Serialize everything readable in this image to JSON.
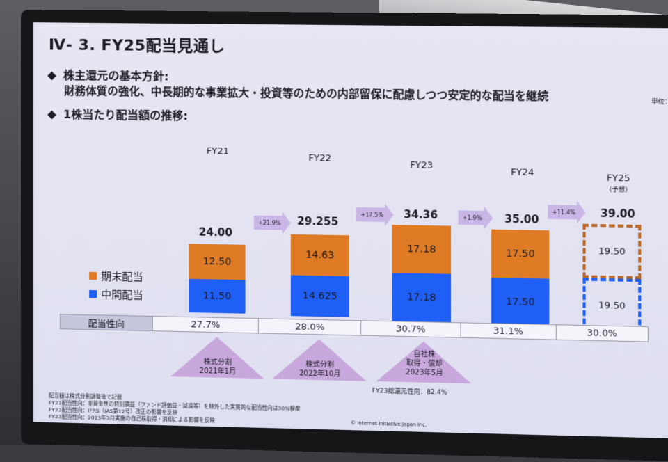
{
  "slide": {
    "title": "Ⅳ- 3. FY25配当見通し",
    "bullet1": "株主還元の基本方針:",
    "policy": "財務体質の強化、中長期的な事業拡大・投資等のための内部留保に配慮しつつ安定的な配当を継続",
    "bullet2": "1株当たり配当額の推移:",
    "unit": "単位：円"
  },
  "legend": {
    "year_end": "期末配当",
    "interim": "中間配当"
  },
  "years": [
    {
      "fy": "FY21",
      "total": "24.00",
      "year_end": "12.50",
      "interim": "11.50",
      "payout": "27.7%"
    },
    {
      "fy": "FY22",
      "total": "29.255",
      "year_end": "14.63",
      "interim": "14.625",
      "payout": "28.0%"
    },
    {
      "fy": "FY23",
      "total": "34.36",
      "year_end": "17.18",
      "interim": "17.18",
      "payout": "30.7%"
    },
    {
      "fy": "FY24",
      "total": "35.00",
      "year_end": "17.50",
      "interim": "17.50",
      "payout": "31.1%"
    },
    {
      "fy": "FY25",
      "fy_note": "(予想)",
      "total": "39.00",
      "year_end": "19.50",
      "interim": "19.50",
      "payout": "30.0%"
    }
  ],
  "growth": [
    "+21.9%",
    "+17.5%",
    "+1.9%",
    "+11.4%"
  ],
  "ratio_header": "配当性向",
  "events": [
    {
      "l1": "株式分割",
      "l2": "2021年1月"
    },
    {
      "l1": "株式分割",
      "l2": "2022年10月"
    },
    {
      "l1": "自社株",
      "l2": "取得・償却",
      "l3": "2023年5月"
    }
  ],
  "fy23_total_return": "FY23総還元性向：82.4%",
  "notes": [
    "配当額は株式分割調整後で記載",
    "FY21配当性向：非資金性の特別損益（ファンド評価益・減損等）を除外した実質的な配当性向は30%程度",
    "FY22配当性向：IFRS（IAS第12号）改正の影響を反映",
    "FY23配当性向：2023年5月実施の自己株取得・消却による影響を反映"
  ],
  "footer": "© Internet Initiative Japan Inc."
}
